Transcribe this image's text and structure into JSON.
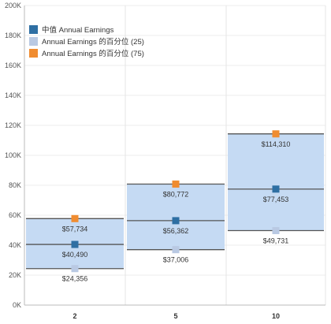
{
  "chart_data": {
    "type": "box",
    "title": "",
    "xlabel": "",
    "ylabel": "",
    "categories": [
      "2",
      "5",
      "10"
    ],
    "ylim": [
      0,
      200000
    ],
    "yticks": [
      0,
      20000,
      40000,
      60000,
      80000,
      100000,
      120000,
      140000,
      160000,
      180000,
      200000
    ],
    "ytick_labels": [
      "0K",
      "20K",
      "40K",
      "60K",
      "80K",
      "100K",
      "120K",
      "140K",
      "160K",
      "180K",
      "200K"
    ],
    "grid": true,
    "legend_position": "top-left",
    "series": [
      {
        "name": "中值 Annual Earnings",
        "role": "median",
        "color": "#2e6fa3",
        "values": [
          40490,
          56362,
          77453
        ],
        "labels": [
          "$40,490",
          "$56,362",
          "$77,453"
        ]
      },
      {
        "name": "Annual Earnings 的百分位 (25)",
        "role": "p25",
        "color": "#b9c9e3",
        "values": [
          24356,
          37006,
          49731
        ],
        "labels": [
          "$24,356",
          "$37,006",
          "$49,731"
        ]
      },
      {
        "name": "Annual Earnings 的百分位 (75)",
        "role": "p75",
        "color": "#f08c30",
        "values": [
          57734,
          80772,
          114310
        ],
        "labels": [
          "$57,734",
          "$80,772",
          "$114,310"
        ]
      }
    ],
    "box_fill": "#c5daf3",
    "box_edge": "#555555"
  }
}
